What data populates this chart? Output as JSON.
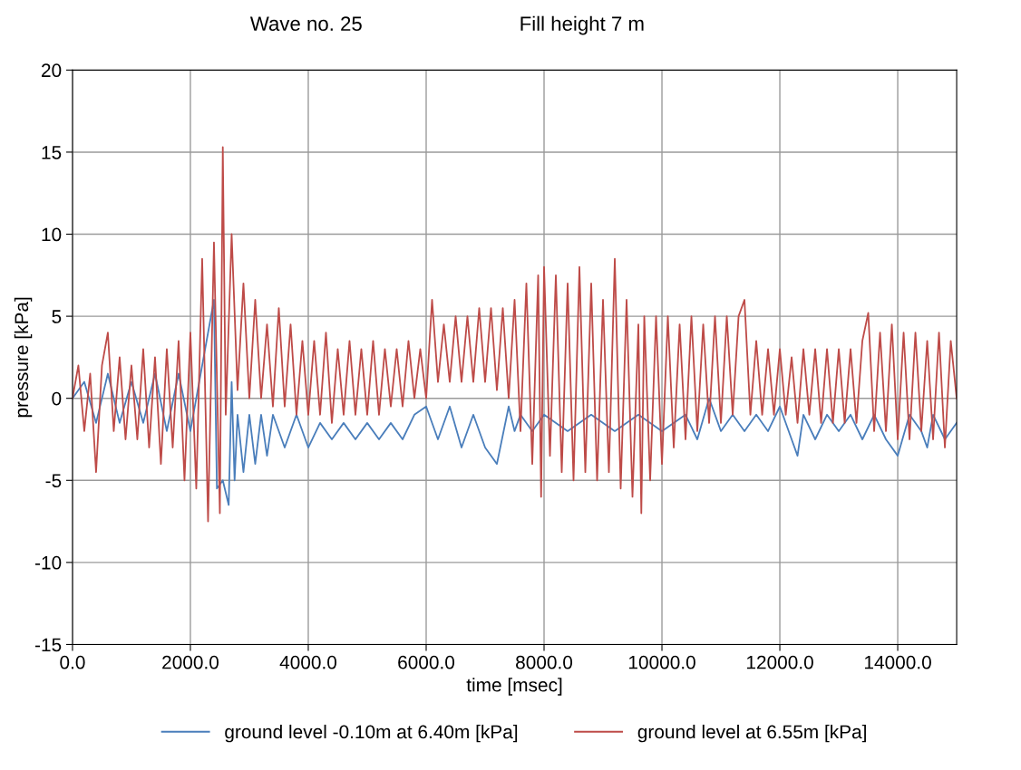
{
  "chart_data": {
    "type": "line",
    "title": "Wave no. 25",
    "subtitle": "Fill height 7 m",
    "xlabel": "time [msec]",
    "ylabel": "pressure [kPa]",
    "xlim": [
      0,
      15000
    ],
    "xticks": [
      {
        "value": 0,
        "label": "0.0"
      },
      {
        "value": 2000,
        "label": "2000.0"
      },
      {
        "value": 4000,
        "label": "4000.0"
      },
      {
        "value": 6000,
        "label": "6000.0"
      },
      {
        "value": 8000,
        "label": "8000.0"
      },
      {
        "value": 10000,
        "label": "10000.0"
      },
      {
        "value": 12000,
        "label": "12000.0"
      },
      {
        "value": 14000,
        "label": "14000.0"
      }
    ],
    "ylim": [
      -15,
      20
    ],
    "yticks": [
      -15,
      -10,
      -5,
      0,
      5,
      10,
      15,
      20
    ],
    "grid": true,
    "legend": "bottom",
    "marker": "none",
    "line_style": "solid",
    "series": [
      {
        "name": "ground level -0.10m at 6.40m [kPa]",
        "color": "#4a7ebb",
        "x": [
          0,
          200,
          400,
          600,
          800,
          1000,
          1200,
          1400,
          1600,
          1800,
          2000,
          2200,
          2400,
          2450,
          2550,
          2650,
          2700,
          2750,
          2800,
          2900,
          3000,
          3100,
          3200,
          3300,
          3400,
          3600,
          3800,
          4000,
          4200,
          4400,
          4600,
          4800,
          5000,
          5200,
          5400,
          5600,
          5800,
          6000,
          6200,
          6400,
          6600,
          6800,
          7000,
          7200,
          7400,
          7500,
          7600,
          7800,
          8000,
          8400,
          8800,
          9200,
          9600,
          10000,
          10400,
          10600,
          10800,
          11000,
          11200,
          11400,
          11600,
          11800,
          12000,
          12200,
          12300,
          12400,
          12600,
          12800,
          13000,
          13200,
          13400,
          13600,
          13800,
          14000,
          14200,
          14400,
          14500,
          14600,
          14800,
          15000
        ],
        "values": [
          0,
          1,
          -1.5,
          1.5,
          -1.5,
          1,
          -1.5,
          1.5,
          -2,
          1.5,
          -2,
          2,
          6,
          -5.5,
          -5,
          -6.5,
          1,
          -5,
          -1,
          -4.5,
          -1,
          -4,
          -1,
          -3.5,
          -1,
          -3,
          -1,
          -3,
          -1.5,
          -2.5,
          -1.5,
          -2.5,
          -1.5,
          -2.5,
          -1.5,
          -2.5,
          -1,
          -0.5,
          -2.5,
          -0.5,
          -3,
          -1,
          -3,
          -4,
          -0.5,
          -2,
          -1,
          -2,
          -1,
          -2,
          -1,
          -2,
          -1,
          -2,
          -1,
          -2.5,
          0,
          -2,
          -1,
          -2,
          -1,
          -2,
          -0.5,
          -2.5,
          -3.5,
          -1,
          -2.5,
          -1,
          -2,
          -1,
          -2.5,
          -1,
          -2.5,
          -3.5,
          -1,
          -2,
          -3,
          -1,
          -2.5,
          -1.5
        ]
      },
      {
        "name": "ground level at 6.55m [kPa]",
        "color": "#be4b48",
        "x": [
          0,
          100,
          200,
          300,
          400,
          500,
          600,
          700,
          800,
          900,
          1000,
          1100,
          1200,
          1300,
          1400,
          1500,
          1600,
          1700,
          1800,
          1900,
          2000,
          2100,
          2200,
          2300,
          2400,
          2500,
          2550,
          2600,
          2700,
          2800,
          2900,
          3000,
          3100,
          3200,
          3300,
          3400,
          3500,
          3600,
          3700,
          3800,
          3900,
          4000,
          4100,
          4200,
          4300,
          4400,
          4500,
          4600,
          4700,
          4800,
          4900,
          5000,
          5100,
          5200,
          5300,
          5400,
          5500,
          5600,
          5700,
          5800,
          5900,
          6000,
          6100,
          6200,
          6300,
          6400,
          6500,
          6600,
          6700,
          6800,
          6900,
          7000,
          7100,
          7200,
          7300,
          7400,
          7500,
          7600,
          7700,
          7800,
          7900,
          7950,
          8000,
          8100,
          8200,
          8300,
          8400,
          8500,
          8600,
          8700,
          8800,
          8900,
          9000,
          9100,
          9200,
          9300,
          9400,
          9500,
          9600,
          9650,
          9700,
          9800,
          9900,
          10000,
          10100,
          10200,
          10300,
          10400,
          10500,
          10600,
          10700,
          10800,
          10900,
          11000,
          11100,
          11200,
          11300,
          11400,
          11500,
          11600,
          11700,
          11800,
          11900,
          12000,
          12100,
          12200,
          12300,
          12400,
          12500,
          12600,
          12700,
          12800,
          12900,
          13000,
          13100,
          13200,
          13300,
          13400,
          13500,
          13600,
          13700,
          13800,
          13900,
          14000,
          14100,
          14200,
          14300,
          14400,
          14500,
          14600,
          14700,
          14800,
          14900,
          15000
        ],
        "values": [
          0,
          2,
          -2,
          1.5,
          -4.5,
          2,
          4,
          -2,
          2.5,
          -2.5,
          2,
          -2.5,
          3,
          -3,
          2.5,
          -4,
          3,
          -3,
          3.5,
          -5,
          4,
          -5.5,
          8.5,
          -7.5,
          9.5,
          -7,
          15.3,
          -1,
          10,
          0.5,
          7,
          0,
          6,
          0,
          4.5,
          -0.5,
          5.5,
          -0.5,
          4.5,
          -1,
          3.5,
          -1,
          3.5,
          -1,
          4,
          -1.5,
          3,
          -1,
          3.5,
          -1,
          3,
          -1,
          3.5,
          -1,
          3,
          -0.5,
          3,
          -0.5,
          3.5,
          0,
          3,
          0,
          6,
          1,
          4.5,
          1,
          5,
          1,
          5,
          1,
          5.5,
          1,
          5.5,
          0.5,
          5.5,
          0,
          6,
          -2,
          7,
          -4,
          7.5,
          -6,
          8,
          -3.5,
          7.5,
          -4.5,
          7,
          -5,
          8,
          -4.5,
          7,
          -5,
          6,
          -4.5,
          8.5,
          -5.5,
          6,
          -6,
          4.5,
          -7,
          5,
          -5,
          5,
          -4,
          5,
          -3,
          4.5,
          -2.5,
          5,
          -2,
          4.5,
          -1.5,
          5,
          -1.5,
          5,
          -1,
          5,
          6,
          -1,
          3.5,
          -1,
          3,
          -1,
          3,
          -1,
          2.5,
          -1.5,
          3,
          -1,
          3,
          -1.5,
          3,
          -1.5,
          3,
          -1.5,
          3,
          -1.5,
          3.5,
          5.2,
          -2,
          4,
          -2,
          4.5,
          -2.5,
          4,
          -2.5,
          4,
          -2,
          3.5,
          -2.5,
          4,
          -3,
          3.5,
          0
        ]
      }
    ]
  }
}
